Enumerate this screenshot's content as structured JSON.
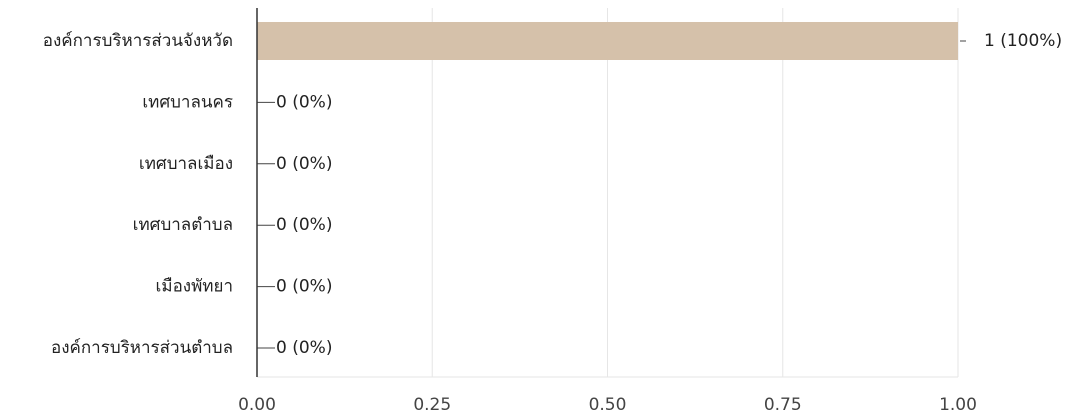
{
  "chart_data": {
    "type": "bar",
    "orientation": "horizontal",
    "categories": [
      "องค์การบริหารส่วนจังหวัด",
      "เทศบาลนคร",
      "เทศบาลเมือง",
      "เทศบาลตำบล",
      "เมืองพัทยา",
      "องค์การบริหารส่วนตำบล"
    ],
    "values": [
      1,
      0,
      0,
      0,
      0,
      0
    ],
    "data_labels": [
      "1 (100%)",
      "0 (0%)",
      "0 (0%)",
      "0 (0%)",
      "0 (0%)",
      "0 (0%)"
    ],
    "xlim": [
      0,
      1
    ],
    "x_ticks": [
      0,
      0.25,
      0.5,
      0.75,
      1
    ],
    "x_tick_labels": [
      "0.00",
      "0.25",
      "0.50",
      "0.75",
      "1.00"
    ],
    "grid": "vertical",
    "legend": "none",
    "bar_color": "#d5c1aa",
    "title": "",
    "xlabel": "",
    "ylabel": ""
  }
}
